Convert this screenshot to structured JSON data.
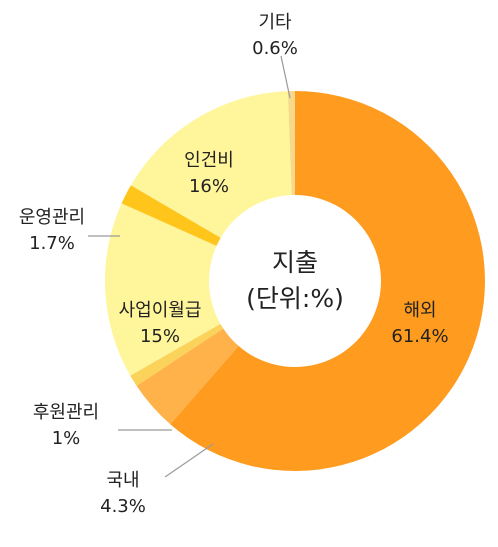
{
  "chart_data": {
    "type": "pie",
    "title": "지출",
    "subtitle": "(단위:%)",
    "categories": [
      "해외",
      "국내",
      "후원관리",
      "사업이월급",
      "운영관리",
      "인건비",
      "기타"
    ],
    "values": [
      61.4,
      4.3,
      1,
      15,
      1.7,
      16,
      0.6
    ],
    "value_labels": [
      "61.4%",
      "4.3%",
      "1%",
      "15%",
      "1.7%",
      "16%",
      "0.6%"
    ],
    "colors": [
      "#FF9B1E",
      "#FFB24A",
      "#FBD35A",
      "#FFF59A",
      "#FFC51A",
      "#FFF59A",
      "#F6D98A"
    ],
    "legend": "none"
  }
}
